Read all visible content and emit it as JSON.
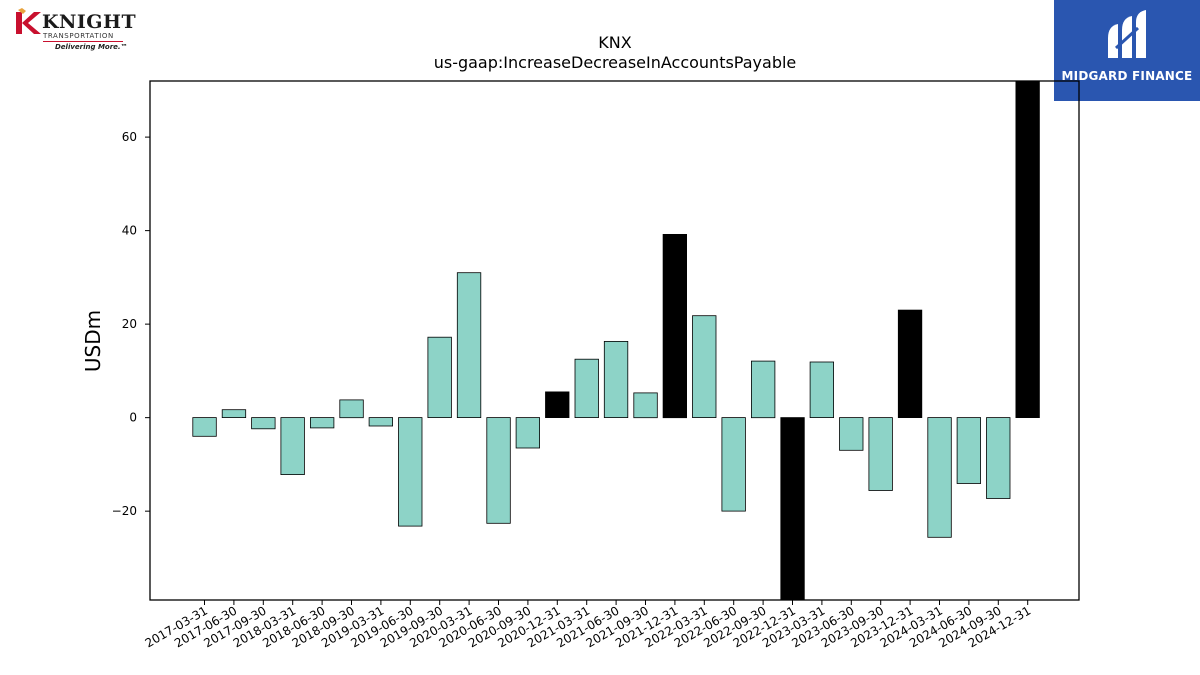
{
  "logos": {
    "left": {
      "name": "KNIGHT",
      "subtitle": "TRANSPORTATION",
      "tagline": "Delivering More.™",
      "color": "#c8102e"
    },
    "right": {
      "name": "MIDGARD FINANCE",
      "background": "#2a56b0"
    }
  },
  "chart_data": {
    "type": "bar",
    "title": "KNX",
    "subtitle": "us-gaap:IncreaseDecreaseInAccountsPayable",
    "ylabel": "USDm",
    "xlabel": "",
    "ylim": [
      -39,
      72
    ],
    "yticks": [
      -20,
      0,
      20,
      40,
      60
    ],
    "ytick_labels": [
      "−20",
      "0",
      "20",
      "40",
      "60"
    ],
    "grid": false,
    "colors": {
      "quarterly": "#8dd3c7",
      "annual": "#000000"
    },
    "categories": [
      "2017-03-31",
      "2017-06-30",
      "2017-09-30",
      "2018-03-31",
      "2018-06-30",
      "2018-09-30",
      "2019-03-31",
      "2019-06-30",
      "2019-09-30",
      "2020-03-31",
      "2020-06-30",
      "2020-09-30",
      "2020-12-31",
      "2021-03-31",
      "2021-06-30",
      "2021-09-30",
      "2021-12-31",
      "2022-03-31",
      "2022-06-30",
      "2022-09-30",
      "2022-12-31",
      "2023-03-31",
      "2023-06-30",
      "2023-09-30",
      "2023-12-31",
      "2024-03-31",
      "2024-06-30",
      "2024-09-30",
      "2024-12-31"
    ],
    "values": [
      -4.0,
      1.7,
      -2.4,
      -12.2,
      -2.2,
      3.8,
      -1.8,
      -23.2,
      17.2,
      31.0,
      -22.6,
      -6.5,
      5.5,
      12.5,
      16.3,
      5.3,
      39.2,
      21.8,
      -20.0,
      12.1,
      -39.0,
      11.9,
      -7.0,
      -15.6,
      23.0,
      -25.6,
      -14.1,
      -17.3,
      72.0
    ],
    "kinds": [
      "q",
      "q",
      "q",
      "q",
      "q",
      "q",
      "q",
      "q",
      "q",
      "q",
      "q",
      "q",
      "a",
      "q",
      "q",
      "q",
      "a",
      "q",
      "q",
      "q",
      "a",
      "q",
      "q",
      "q",
      "a",
      "q",
      "q",
      "q",
      "a"
    ]
  }
}
